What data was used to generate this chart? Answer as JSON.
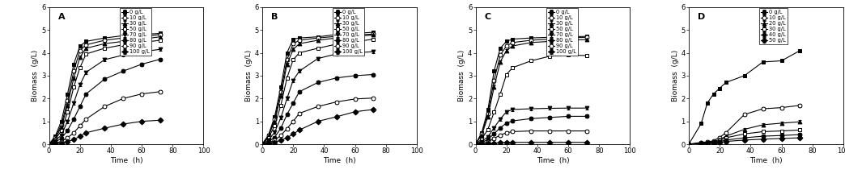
{
  "panels": [
    "A",
    "B",
    "C",
    "D"
  ],
  "xlabel": "Time  (h)",
  "ylabel": "Biomass  (g/L)",
  "xlim": [
    0,
    100
  ],
  "ylim": [
    0,
    6
  ],
  "xticks": [
    0,
    20,
    40,
    60,
    80,
    100
  ],
  "yticks": [
    0,
    1,
    2,
    3,
    4,
    5,
    6
  ],
  "legend_labels_ABCD": [
    "0 g/L",
    "10 g/L",
    "30 g/L",
    "50 g/L",
    "70 g/L",
    "80 g/L",
    "90 g/L",
    "100 g/L"
  ],
  "legend_labels_D": [
    "0 g/L",
    "10 g/L",
    "20 g/L",
    "30 g/L",
    "40 g/L",
    "50 g/L"
  ],
  "panel_A": {
    "time": [
      0,
      4,
      8,
      12,
      16,
      20,
      24,
      36,
      48,
      60,
      72
    ],
    "series": [
      [
        0,
        0.35,
        1.0,
        2.2,
        3.5,
        4.3,
        4.5,
        4.65,
        4.75,
        4.8,
        4.85
      ],
      [
        0,
        0.3,
        0.85,
        1.9,
        3.2,
        4.1,
        4.35,
        4.55,
        4.65,
        4.7,
        4.8
      ],
      [
        0,
        0.25,
        0.75,
        1.7,
        2.9,
        3.8,
        4.2,
        4.4,
        4.5,
        4.6,
        4.7
      ],
      [
        0,
        0.2,
        0.6,
        1.4,
        2.5,
        3.35,
        3.95,
        4.2,
        4.35,
        4.45,
        4.55
      ],
      [
        0,
        0.15,
        0.4,
        1.0,
        1.8,
        2.6,
        3.15,
        3.7,
        3.9,
        4.05,
        4.15
      ],
      [
        0,
        0.1,
        0.25,
        0.6,
        1.1,
        1.65,
        2.2,
        2.85,
        3.2,
        3.5,
        3.72
      ],
      [
        0,
        0.05,
        0.12,
        0.28,
        0.5,
        0.8,
        1.1,
        1.65,
        2.0,
        2.2,
        2.3
      ],
      [
        0,
        0.02,
        0.05,
        0.12,
        0.2,
        0.35,
        0.5,
        0.7,
        0.88,
        1.0,
        1.05
      ]
    ],
    "styles": [
      {
        "marker": "s",
        "filled": true
      },
      {
        "marker": "o",
        "filled": false
      },
      {
        "marker": "^",
        "filled": true
      },
      {
        "marker": "s",
        "filled": false
      },
      {
        "marker": "v",
        "filled": true
      },
      {
        "marker": "o",
        "filled": true
      },
      {
        "marker": "o",
        "filled": false
      },
      {
        "marker": "D",
        "filled": true
      }
    ]
  },
  "panel_B": {
    "time": [
      0,
      4,
      8,
      12,
      16,
      20,
      24,
      36,
      48,
      60,
      72
    ],
    "series": [
      [
        0,
        0.4,
        1.2,
        2.5,
        4.0,
        4.6,
        4.65,
        4.7,
        4.8,
        4.85,
        4.9
      ],
      [
        0,
        0.38,
        1.1,
        2.3,
        3.7,
        4.4,
        4.55,
        4.65,
        4.72,
        4.78,
        4.82
      ],
      [
        0,
        0.35,
        1.0,
        2.1,
        3.5,
        4.15,
        4.4,
        4.55,
        4.65,
        4.72,
        4.78
      ],
      [
        0,
        0.28,
        0.8,
        1.7,
        2.9,
        3.7,
        4.0,
        4.2,
        4.38,
        4.48,
        4.6
      ],
      [
        0,
        0.18,
        0.52,
        1.15,
        2.0,
        2.8,
        3.2,
        3.75,
        3.95,
        4.0,
        4.05
      ],
      [
        0,
        0.1,
        0.3,
        0.7,
        1.3,
        1.8,
        2.3,
        2.7,
        2.9,
        3.0,
        3.05
      ],
      [
        0,
        0.06,
        0.17,
        0.38,
        0.68,
        1.0,
        1.35,
        1.65,
        1.85,
        1.98,
        2.02
      ],
      [
        0,
        0.03,
        0.08,
        0.17,
        0.28,
        0.45,
        0.62,
        1.0,
        1.2,
        1.42,
        1.52
      ]
    ],
    "styles": [
      {
        "marker": "s",
        "filled": true
      },
      {
        "marker": "o",
        "filled": false
      },
      {
        "marker": "^",
        "filled": true
      },
      {
        "marker": "s",
        "filled": false
      },
      {
        "marker": "v",
        "filled": true
      },
      {
        "marker": "o",
        "filled": true
      },
      {
        "marker": "o",
        "filled": false
      },
      {
        "marker": "D",
        "filled": true
      }
    ]
  },
  "panel_C": {
    "time": [
      0,
      4,
      8,
      12,
      16,
      20,
      24,
      36,
      48,
      60,
      72
    ],
    "series": [
      [
        0,
        0.5,
        1.5,
        3.2,
        4.2,
        4.5,
        4.6,
        4.65,
        4.68,
        4.7,
        4.72
      ],
      [
        0,
        0.45,
        1.35,
        2.8,
        3.9,
        4.3,
        4.45,
        4.55,
        4.6,
        4.65,
        4.68
      ],
      [
        0,
        0.4,
        1.2,
        2.5,
        3.6,
        4.1,
        4.3,
        4.45,
        4.5,
        4.55,
        4.58
      ],
      [
        0,
        0.22,
        0.65,
        1.4,
        2.2,
        3.05,
        3.35,
        3.65,
        3.85,
        3.9,
        3.88
      ],
      [
        0,
        0.12,
        0.32,
        0.72,
        1.1,
        1.42,
        1.52,
        1.55,
        1.57,
        1.58,
        1.58
      ],
      [
        0,
        0.08,
        0.2,
        0.46,
        0.72,
        0.92,
        1.02,
        1.12,
        1.17,
        1.22,
        1.22
      ],
      [
        0,
        0.04,
        0.1,
        0.25,
        0.4,
        0.5,
        0.55,
        0.58,
        0.58,
        0.58,
        0.58
      ],
      [
        0,
        0.01,
        0.03,
        0.05,
        0.07,
        0.08,
        0.08,
        0.08,
        0.08,
        0.08,
        0.08
      ]
    ],
    "styles": [
      {
        "marker": "s",
        "filled": true
      },
      {
        "marker": "o",
        "filled": false
      },
      {
        "marker": "^",
        "filled": true
      },
      {
        "marker": "s",
        "filled": false
      },
      {
        "marker": "v",
        "filled": true
      },
      {
        "marker": "o",
        "filled": true
      },
      {
        "marker": "o",
        "filled": false
      },
      {
        "marker": "D",
        "filled": true
      }
    ]
  },
  "panel_D": {
    "time": [
      0,
      8,
      12,
      16,
      20,
      24,
      36,
      48,
      60,
      72
    ],
    "series": [
      [
        0,
        0.9,
        1.8,
        2.2,
        2.45,
        2.7,
        3.0,
        3.6,
        3.65,
        4.1
      ],
      [
        0,
        0.08,
        0.1,
        0.15,
        0.3,
        0.5,
        1.3,
        1.55,
        1.6,
        1.7
      ],
      [
        0,
        0.05,
        0.08,
        0.12,
        0.2,
        0.35,
        0.65,
        0.85,
        0.92,
        0.98
      ],
      [
        0,
        0.04,
        0.06,
        0.1,
        0.16,
        0.28,
        0.45,
        0.55,
        0.58,
        0.62
      ],
      [
        0,
        0.03,
        0.04,
        0.08,
        0.12,
        0.18,
        0.28,
        0.35,
        0.38,
        0.42
      ],
      [
        0,
        0.02,
        0.03,
        0.05,
        0.08,
        0.12,
        0.18,
        0.22,
        0.25,
        0.28
      ]
    ],
    "styles": [
      {
        "marker": "s",
        "filled": true
      },
      {
        "marker": "o",
        "filled": false
      },
      {
        "marker": "^",
        "filled": true
      },
      {
        "marker": "s",
        "filled": false
      },
      {
        "marker": "o",
        "filled": true
      },
      {
        "marker": "D",
        "filled": true
      }
    ]
  },
  "color": "black",
  "markersize": 3.5,
  "linewidth": 0.8,
  "errorbar_capsize": 1.5,
  "errorbar_elinewidth": 0.6
}
